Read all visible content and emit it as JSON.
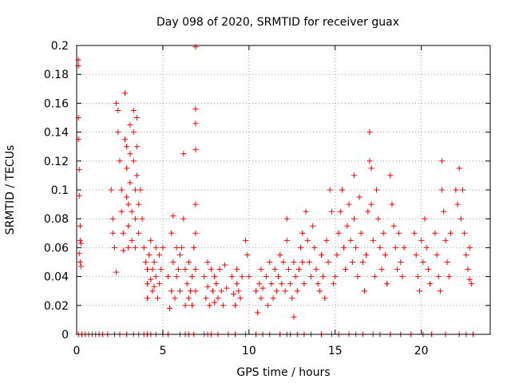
{
  "chart_data": {
    "type": "scatter",
    "title": "Day 098 of 2020, SRMTID for receiver guax",
    "xlabel": "GPS time / hours",
    "ylabel": "SRMTID / TECUs",
    "xlim": [
      0,
      24
    ],
    "ylim": [
      0,
      0.2
    ],
    "x_ticks": [
      0,
      5,
      10,
      15,
      20
    ],
    "x_tick_labels": [
      "0",
      "5",
      "10",
      "15",
      "20"
    ],
    "y_ticks": [
      0,
      0.02,
      0.04,
      0.06,
      0.08,
      0.1,
      0.12,
      0.14,
      0.16,
      0.18,
      0.2
    ],
    "y_tick_labels": [
      "0",
      "0.02",
      "0.04",
      "0.06",
      "0.08",
      "0.1",
      "0.12",
      "0.14",
      "0.16",
      "0.18",
      "0.2"
    ],
    "grid": true,
    "marker": "+",
    "color": "#ff0000",
    "series": [
      {
        "name": "SRMTID",
        "points": [
          [
            0.1,
            0.19
          ],
          [
            0.1,
            0.186
          ],
          [
            0.1,
            0.15
          ],
          [
            0.1,
            0.135
          ],
          [
            0.15,
            0.114
          ],
          [
            0.15,
            0.096
          ],
          [
            0.2,
            0.075
          ],
          [
            0.2,
            0.065
          ],
          [
            0.25,
            0.063
          ],
          [
            0.15,
            0.056
          ],
          [
            0.2,
            0.05
          ],
          [
            0.25,
            0.047
          ],
          [
            2.0,
            0.1
          ],
          [
            2.1,
            0.08
          ],
          [
            2.1,
            0.07
          ],
          [
            2.2,
            0.06
          ],
          [
            2.3,
            0.043
          ],
          [
            2.3,
            0.16
          ],
          [
            2.4,
            0.155
          ],
          [
            2.4,
            0.14
          ],
          [
            2.5,
            0.12
          ],
          [
            2.6,
            0.1
          ],
          [
            2.6,
            0.085
          ],
          [
            2.7,
            0.07
          ],
          [
            2.7,
            0.058
          ],
          [
            2.8,
            0.167
          ],
          [
            2.8,
            0.135
          ],
          [
            2.9,
            0.13
          ],
          [
            2.9,
            0.115
          ],
          [
            2.9,
            0.095
          ],
          [
            3.0,
            0.09
          ],
          [
            3.0,
            0.075
          ],
          [
            3.0,
            0.06
          ],
          [
            3.1,
            0.145
          ],
          [
            3.1,
            0.125
          ],
          [
            3.1,
            0.105
          ],
          [
            3.2,
            0.085
          ],
          [
            3.2,
            0.065
          ],
          [
            3.3,
            0.155
          ],
          [
            3.3,
            0.14
          ],
          [
            3.3,
            0.12
          ],
          [
            3.4,
            0.1
          ],
          [
            3.4,
            0.08
          ],
          [
            3.4,
            0.06
          ],
          [
            3.5,
            0.15
          ],
          [
            3.5,
            0.13
          ],
          [
            3.5,
            0.11
          ],
          [
            3.6,
            0.09
          ],
          [
            3.6,
            0.07
          ],
          [
            3.7,
            0.1
          ],
          [
            3.8,
            0.08
          ],
          [
            3.9,
            0.06
          ],
          [
            4.0,
            0.05
          ],
          [
            4.1,
            0.045
          ],
          [
            4.1,
            0.035
          ],
          [
            4.1,
            0.025
          ],
          [
            4.2,
            0.055
          ],
          [
            4.3,
            0.038
          ],
          [
            4.3,
            0.065
          ],
          [
            4.4,
            0.045
          ],
          [
            4.4,
            0.03
          ],
          [
            4.5,
            0.05
          ],
          [
            4.5,
            0.033
          ],
          [
            4.6,
            0.06
          ],
          [
            4.6,
            0.04
          ],
          [
            4.7,
            0.025
          ],
          [
            4.8,
            0.055
          ],
          [
            4.8,
            0.035
          ],
          [
            4.9,
            0.045
          ],
          [
            5.0,
            0.06
          ],
          [
            5.3,
            0.04
          ],
          [
            5.4,
            0.018
          ],
          [
            5.5,
            0.03
          ],
          [
            5.5,
            0.07
          ],
          [
            5.6,
            0.082
          ],
          [
            5.6,
            0.05
          ],
          [
            5.7,
            0.025
          ],
          [
            5.8,
            0.06
          ],
          [
            5.8,
            0.04
          ],
          [
            5.9,
            0.045
          ],
          [
            6.0,
            0.03
          ],
          [
            6.0,
            0.055
          ],
          [
            6.1,
            0.06
          ],
          [
            6.2,
            0.125
          ],
          [
            6.2,
            0.08
          ],
          [
            6.3,
            0.02
          ],
          [
            6.3,
            0.045
          ],
          [
            6.4,
            0.035
          ],
          [
            6.5,
            0.025
          ],
          [
            6.5,
            0.05
          ],
          [
            6.6,
            0.03
          ],
          [
            6.7,
            0.04
          ],
          [
            6.7,
            0.02
          ],
          [
            6.8,
            0.06
          ],
          [
            6.9,
            0.199
          ],
          [
            6.9,
            0.156
          ],
          [
            6.9,
            0.146
          ],
          [
            6.9,
            0.128
          ],
          [
            6.9,
            0.09
          ],
          [
            6.9,
            0.07
          ],
          [
            6.9,
            0.045
          ],
          [
            6.9,
            0.03
          ],
          [
            7.4,
            0.04
          ],
          [
            7.5,
            0.025
          ],
          [
            7.6,
            0.05
          ],
          [
            7.6,
            0.033
          ],
          [
            7.7,
            0.02
          ],
          [
            7.8,
            0.045
          ],
          [
            7.9,
            0.03
          ],
          [
            8.0,
            0.022
          ],
          [
            8.0,
            0.04
          ],
          [
            8.1,
            0.035
          ],
          [
            8.2,
            0.025
          ],
          [
            8.3,
            0.045
          ],
          [
            8.4,
            0.03
          ],
          [
            8.5,
            0.02
          ],
          [
            8.6,
            0.048
          ],
          [
            8.7,
            0.032
          ],
          [
            9.0,
            0.04
          ],
          [
            9.1,
            0.028
          ],
          [
            9.2,
            0.02
          ],
          [
            9.3,
            0.045
          ],
          [
            9.3,
            0.035
          ],
          [
            9.4,
            0.03
          ],
          [
            9.5,
            0.025
          ],
          [
            9.6,
            0.04
          ],
          [
            9.8,
            0.065
          ],
          [
            9.9,
            0.055
          ],
          [
            10.0,
            0.04
          ],
          [
            10.4,
            0.03
          ],
          [
            10.5,
            0.015
          ],
          [
            10.6,
            0.035
          ],
          [
            10.7,
            0.045
          ],
          [
            10.7,
            0.025
          ],
          [
            10.8,
            0.032
          ],
          [
            11.0,
            0.04
          ],
          [
            11.1,
            0.02
          ],
          [
            11.2,
            0.05
          ],
          [
            11.3,
            0.035
          ],
          [
            11.4,
            0.025
          ],
          [
            11.5,
            0.045
          ],
          [
            11.6,
            0.03
          ],
          [
            11.7,
            0.04
          ],
          [
            11.8,
            0.055
          ],
          [
            11.9,
            0.035
          ],
          [
            12.0,
            0.05
          ],
          [
            12.1,
            0.03
          ],
          [
            12.2,
            0.08
          ],
          [
            12.2,
            0.065
          ],
          [
            12.3,
            0.045
          ],
          [
            12.4,
            0.035
          ],
          [
            12.5,
            0.025
          ],
          [
            12.6,
            0.012
          ],
          [
            12.6,
            0.05
          ],
          [
            12.7,
            0.04
          ],
          [
            12.8,
            0.03
          ],
          [
            12.9,
            0.045
          ],
          [
            13.0,
            0.06
          ],
          [
            13.1,
            0.07
          ],
          [
            13.1,
            0.05
          ],
          [
            13.2,
            0.035
          ],
          [
            13.3,
            0.085
          ],
          [
            13.4,
            0.065
          ],
          [
            13.5,
            0.05
          ],
          [
            13.6,
            0.04
          ],
          [
            13.7,
            0.075
          ],
          [
            13.8,
            0.06
          ],
          [
            13.9,
            0.045
          ],
          [
            14.0,
            0.035
          ],
          [
            14.1,
            0.03
          ],
          [
            14.2,
            0.055
          ],
          [
            14.3,
            0.04
          ],
          [
            14.4,
            0.025
          ],
          [
            14.5,
            0.065
          ],
          [
            14.6,
            0.05
          ],
          [
            14.7,
            0.1
          ],
          [
            14.8,
            0.085
          ],
          [
            14.9,
            0.035
          ],
          [
            15.0,
            0.04
          ],
          [
            15.1,
            0.055
          ],
          [
            15.2,
            0.07
          ],
          [
            15.3,
            0.085
          ],
          [
            15.4,
            0.1
          ],
          [
            15.5,
            0.06
          ],
          [
            15.6,
            0.045
          ],
          [
            15.7,
            0.075
          ],
          [
            15.8,
            0.09
          ],
          [
            15.9,
            0.065
          ],
          [
            16.0,
            0.05
          ],
          [
            16.1,
            0.11
          ],
          [
            16.1,
            0.08
          ],
          [
            16.2,
            0.06
          ],
          [
            16.3,
            0.04
          ],
          [
            16.4,
            0.095
          ],
          [
            16.5,
            0.07
          ],
          [
            16.6,
            0.05
          ],
          [
            16.7,
            0.03
          ],
          [
            16.8,
            0.055
          ],
          [
            16.9,
            0.085
          ],
          [
            17.0,
            0.14
          ],
          [
            17.0,
            0.12
          ],
          [
            17.1,
            0.115
          ],
          [
            17.1,
            0.09
          ],
          [
            17.2,
            0.065
          ],
          [
            17.3,
            0.04
          ],
          [
            17.4,
            0.1
          ],
          [
            17.5,
            0.08
          ],
          [
            17.6,
            0.06
          ],
          [
            17.7,
            0.045
          ],
          [
            17.8,
            0.07
          ],
          [
            17.9,
            0.055
          ],
          [
            18.0,
            0.035
          ],
          [
            18.2,
            0.11
          ],
          [
            18.3,
            0.09
          ],
          [
            18.4,
            0.075
          ],
          [
            18.5,
            0.06
          ],
          [
            18.6,
            0.045
          ],
          [
            18.7,
            0.07
          ],
          [
            18.8,
            0.05
          ],
          [
            18.9,
            0.04
          ],
          [
            19.0,
            0.06
          ],
          [
            19.6,
            0.07
          ],
          [
            19.7,
            0.055
          ],
          [
            19.8,
            0.04
          ],
          [
            19.9,
            0.03
          ],
          [
            20.0,
            0.065
          ],
          [
            20.1,
            0.05
          ],
          [
            20.2,
            0.08
          ],
          [
            20.3,
            0.06
          ],
          [
            20.4,
            0.045
          ],
          [
            20.5,
            0.035
          ],
          [
            20.8,
            0.07
          ],
          [
            20.9,
            0.055
          ],
          [
            21.0,
            0.04
          ],
          [
            21.1,
            0.03
          ],
          [
            21.2,
            0.12
          ],
          [
            21.2,
            0.1
          ],
          [
            21.3,
            0.085
          ],
          [
            21.4,
            0.065
          ],
          [
            21.5,
            0.05
          ],
          [
            21.6,
            0.04
          ],
          [
            21.7,
            0.07
          ],
          [
            22.0,
            0.1
          ],
          [
            22.1,
            0.09
          ],
          [
            22.2,
            0.115
          ],
          [
            22.3,
            0.08
          ],
          [
            22.4,
            0.1
          ],
          [
            22.5,
            0.07
          ],
          [
            22.6,
            0.055
          ],
          [
            22.7,
            0.045
          ],
          [
            22.8,
            0.06
          ],
          [
            22.8,
            0.038
          ],
          [
            22.9,
            0.035
          ]
        ],
        "zero_points_x": [
          0.1,
          0.3,
          0.5,
          0.7,
          0.9,
          1.1,
          1.3,
          1.5,
          1.8,
          2.2,
          2.5,
          2.9,
          3.3,
          3.6,
          3.9,
          4.1,
          4.3,
          4.6,
          5.0,
          5.3,
          6.0,
          6.3,
          6.5,
          6.8,
          7.4,
          7.6,
          7.8,
          8.2,
          8.8,
          9.2,
          9.8,
          10.4,
          10.8,
          11.2,
          11.8,
          12.2,
          12.4,
          12.8,
          13.2,
          13.6,
          14.2,
          14.8,
          15.2,
          15.8,
          16.2,
          16.6,
          17.2,
          17.6,
          18.2,
          18.8,
          19.4,
          20.1,
          20.6,
          21.4,
          22.2,
          22.6,
          23.0
        ]
      }
    ]
  }
}
